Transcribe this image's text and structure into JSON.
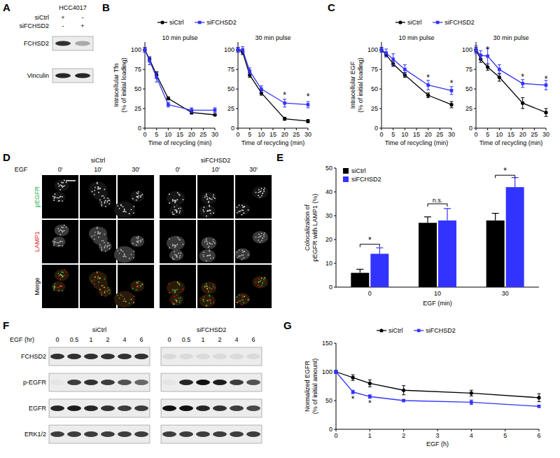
{
  "panel_labels": [
    "A",
    "B",
    "C",
    "D",
    "E",
    "F",
    "G"
  ],
  "blot_a": {
    "cell_line": "HCC4017",
    "conditions": [
      {
        "label": "siCtrl",
        "signs": [
          "+",
          "-"
        ]
      },
      {
        "label": "siFCHSD2",
        "signs": [
          "-",
          "+"
        ]
      }
    ],
    "rows": [
      {
        "label": "FCHSD2",
        "intensities": [
          0.85,
          0.3
        ]
      },
      {
        "label": "Vinculin",
        "intensities": [
          0.9,
          0.9
        ]
      }
    ]
  },
  "images_d": {
    "stimulus": "EGF",
    "groups": [
      "siCtrl",
      "siFCHSD2"
    ],
    "times": [
      "0'",
      "10'",
      "30'"
    ],
    "rows": [
      {
        "label": "pEGFR",
        "color": "#22b14c"
      },
      {
        "label": "LAMP1",
        "color": "#e02020"
      },
      {
        "label": "Merge",
        "color": "#000000"
      }
    ]
  },
  "blot_f": {
    "x_label": "EGF (hr)",
    "groups": [
      "siCtrl",
      "siFCHSD2"
    ],
    "lanes": [
      "0",
      "0.5",
      "1",
      "2",
      "4",
      "6"
    ],
    "rows": [
      {
        "label": "FCHSD2",
        "intensities": [
          0.85,
          0.85,
          0.85,
          0.85,
          0.85,
          0.85,
          0.08,
          0.08,
          0.08,
          0.08,
          0.08,
          0.08
        ]
      },
      {
        "label": "p-EGFR",
        "intensities": [
          0.03,
          0.8,
          0.85,
          0.8,
          0.7,
          0.6,
          0.03,
          0.9,
          1,
          0.95,
          0.8,
          0.7
        ]
      },
      {
        "label": "EGFR",
        "intensities": [
          0.9,
          0.95,
          0.9,
          0.85,
          0.8,
          0.8,
          1,
          1,
          0.9,
          0.85,
          0.8,
          0.75
        ]
      },
      {
        "label": "ERK1/2",
        "intensities": [
          0.8,
          0.8,
          0.8,
          0.8,
          0.8,
          0.8,
          0.8,
          0.8,
          0.8,
          0.8,
          0.8,
          0.8
        ]
      }
    ]
  },
  "chart_data": [
    {
      "type": "line",
      "title": "10 min pulse",
      "x_label": "Time of recycling (min)",
      "y_label": [
        "Intracellular Tfn",
        "(% of initial loading)"
      ],
      "x": [
        0,
        2,
        5,
        10,
        20,
        30
      ],
      "xlim": [
        0,
        30
      ],
      "xticks": [
        0,
        5,
        10,
        15,
        20,
        25,
        30
      ],
      "ylim": [
        0,
        110
      ],
      "yticks": [
        0,
        25,
        50,
        75,
        100
      ],
      "legend": "top",
      "series": [
        {
          "name": "siCtrl",
          "color": "#000000",
          "marker": "circle",
          "values": [
            100,
            88,
            68,
            38,
            20,
            17
          ],
          "errors": [
            3,
            3,
            4,
            2,
            2,
            1
          ]
        },
        {
          "name": "siFCHSD2",
          "color": "#3333ff",
          "marker": "square",
          "values": [
            100,
            86,
            65,
            30,
            23,
            23
          ],
          "errors": [
            3,
            5,
            6,
            3,
            3,
            3
          ]
        }
      ],
      "annotations": []
    },
    {
      "type": "line",
      "title": "30 min pulse",
      "x_label": "Time of recycling (min)",
      "x": [
        0,
        2,
        5,
        10,
        20,
        30
      ],
      "xlim": [
        0,
        30
      ],
      "xticks": [
        0,
        5,
        10,
        15,
        20,
        25,
        30
      ],
      "ylim": [
        0,
        110
      ],
      "yticks": [
        0,
        25,
        50,
        75,
        100
      ],
      "series": [
        {
          "color": "#000000",
          "marker": "circle",
          "values": [
            100,
            97,
            68,
            45,
            12,
            9
          ],
          "errors": [
            3,
            3,
            3,
            3,
            2,
            2
          ]
        },
        {
          "color": "#3333ff",
          "marker": "square",
          "values": [
            100,
            100,
            73,
            50,
            32,
            30
          ],
          "errors": [
            3,
            4,
            4,
            4,
            5,
            4
          ]
        }
      ],
      "annotations": [
        {
          "text": "*",
          "x": 20,
          "y": 42
        },
        {
          "text": "*",
          "x": 30,
          "y": 40
        }
      ]
    },
    {
      "type": "line",
      "title": "10 min pulse",
      "x_label": "Time of recycling (min)",
      "y_label": [
        "Intracellular EGF",
        "(% of initial loading)"
      ],
      "x": [
        0,
        2,
        5,
        10,
        20,
        30
      ],
      "xlim": [
        0,
        30
      ],
      "xticks": [
        0,
        5,
        10,
        15,
        20,
        25,
        30
      ],
      "ylim": [
        0,
        110
      ],
      "yticks": [
        0,
        25,
        50,
        75,
        100
      ],
      "legend": "top",
      "series": [
        {
          "name": "siCtrl",
          "color": "#000000",
          "marker": "circle",
          "values": [
            100,
            94,
            82,
            68,
            42,
            30
          ],
          "errors": [
            3,
            3,
            3,
            3,
            3,
            4
          ]
        },
        {
          "name": "siFCHSD2",
          "color": "#3333ff",
          "marker": "square",
          "values": [
            100,
            96,
            88,
            75,
            55,
            48
          ],
          "errors": [
            3,
            5,
            7,
            6,
            6,
            5
          ]
        }
      ],
      "annotations": [
        {
          "text": "*",
          "x": 20,
          "y": 64
        },
        {
          "text": "*",
          "x": 30,
          "y": 57
        }
      ]
    },
    {
      "type": "line",
      "title": "30 min pulse",
      "x_label": "Time of recycling (min)",
      "x": [
        0,
        2,
        5,
        10,
        20,
        30
      ],
      "xlim": [
        0,
        30
      ],
      "xticks": [
        0,
        5,
        10,
        15,
        20,
        25,
        30
      ],
      "ylim": [
        0,
        110
      ],
      "yticks": [
        0,
        25,
        50,
        75,
        100
      ],
      "series": [
        {
          "color": "#000000",
          "marker": "circle",
          "values": [
            100,
            88,
            78,
            65,
            32,
            20
          ],
          "errors": [
            3,
            4,
            4,
            5,
            7,
            5
          ]
        },
        {
          "color": "#3333ff",
          "marker": "square",
          "values": [
            100,
            93,
            92,
            75,
            57,
            55
          ],
          "errors": [
            5,
            6,
            10,
            6,
            5,
            6
          ]
        }
      ],
      "annotations": [
        {
          "text": "*",
          "x": 5,
          "y": 100
        },
        {
          "text": "*",
          "x": 20,
          "y": 65
        },
        {
          "text": "*",
          "x": 30,
          "y": 63
        }
      ]
    },
    {
      "type": "bar",
      "x_label": "EGF (min)",
      "y_label": [
        "Colocalization of",
        "pEGFR with LAMP1 (%)"
      ],
      "categories": [
        "0",
        "10",
        "30"
      ],
      "ylim": [
        0,
        50
      ],
      "yticks": [
        0,
        10,
        20,
        30,
        40,
        50
      ],
      "legend": "upper left",
      "series": [
        {
          "name": "siCtrl",
          "color": "#000000",
          "values": [
            6,
            27,
            28
          ],
          "errors": [
            1.5,
            2.5,
            3
          ]
        },
        {
          "name": "siFCHSD2",
          "color": "#3333ff",
          "values": [
            14,
            28,
            42
          ],
          "errors": [
            2.5,
            5,
            4
          ]
        }
      ],
      "annotations": [
        {
          "text": "*",
          "x": "0",
          "y": 18
        },
        {
          "text": "n.s.",
          "x": "10",
          "y": 35
        },
        {
          "text": "*",
          "x": "30",
          "y": 47
        }
      ]
    },
    {
      "type": "line",
      "x_label": "EGF (h)",
      "y_label": [
        "Normalized EGFR",
        "(% of initial amount)"
      ],
      "x": [
        0,
        0.5,
        1,
        2,
        4,
        6
      ],
      "xlim": [
        0,
        6
      ],
      "xticks": [
        0,
        1,
        2,
        3,
        4,
        5,
        6
      ],
      "ylim": [
        0,
        150
      ],
      "yticks": [
        0,
        50,
        100,
        150
      ],
      "legend": "top",
      "series": [
        {
          "name": "siCtrl",
          "color": "#000000",
          "marker": "circle",
          "values": [
            100,
            90,
            80,
            68,
            63,
            55
          ],
          "errors": [
            3,
            5,
            6,
            8,
            5,
            7
          ]
        },
        {
          "name": "siFCHSD2",
          "color": "#3333ff",
          "marker": "square",
          "values": [
            100,
            65,
            57,
            50,
            47,
            40
          ],
          "errors": [
            3,
            3,
            3,
            2,
            4,
            2
          ]
        }
      ],
      "annotations": [
        {
          "text": "*",
          "x": 0.5,
          "y": 53
        },
        {
          "text": "*",
          "x": 1,
          "y": 45
        }
      ]
    }
  ]
}
